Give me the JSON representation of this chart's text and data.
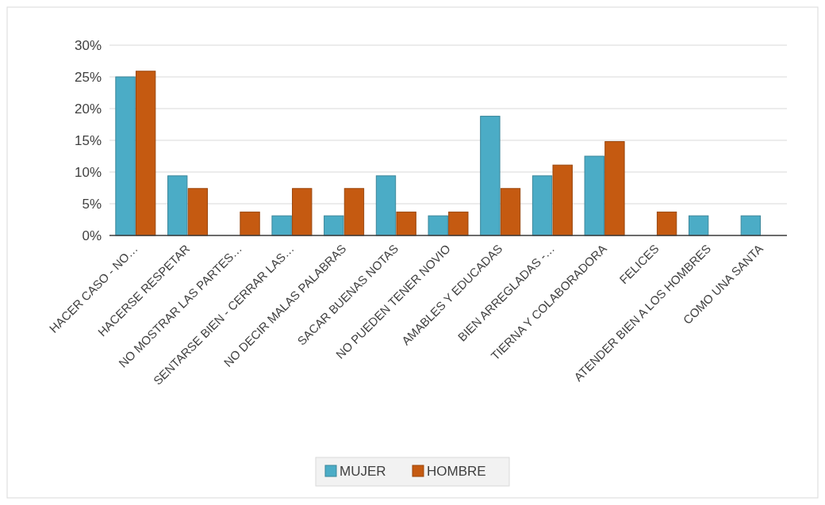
{
  "chart_data": {
    "type": "bar",
    "categories": [
      "HACER CASO - NO…",
      "HACERSE RESPETAR",
      "NO MOSTRAR LAS PARTES…",
      "SENTARSE BIEN - CERRAR LAS…",
      "NO DECIR MALAS PALABRAS",
      "SACAR BUENAS NOTAS",
      "NO PUEDEN TENER NOVIO",
      "AMABLES Y EDUCADAS",
      "BIEN ARREGLADAS -…",
      "TIERNA  Y COLABORADORA",
      "FELICES",
      "ATENDER BIEN A LOS HOMBRES",
      "COMO UNA SANTA"
    ],
    "series": [
      {
        "name": "MUJER",
        "color": "#4bacc6",
        "values": [
          25,
          9.4,
          0,
          3.1,
          3.1,
          9.4,
          3.1,
          18.8,
          9.4,
          12.5,
          0,
          3.1,
          3.1
        ]
      },
      {
        "name": "HOMBRE",
        "color": "#c55a11",
        "values": [
          25.9,
          7.4,
          3.7,
          7.4,
          7.4,
          3.7,
          3.7,
          7.4,
          11.1,
          14.8,
          3.7,
          0,
          0
        ]
      }
    ],
    "ylim": [
      0,
      30
    ],
    "yticks": [
      {
        "value": 0,
        "label": "0%"
      },
      {
        "value": 5,
        "label": "5%"
      },
      {
        "value": 10,
        "label": "10%"
      },
      {
        "value": 15,
        "label": "15%"
      },
      {
        "value": 20,
        "label": "20%"
      },
      {
        "value": 25,
        "label": "25%"
      },
      {
        "value": 30,
        "label": "30%"
      }
    ],
    "grid": "y",
    "legend": "bottom"
  }
}
